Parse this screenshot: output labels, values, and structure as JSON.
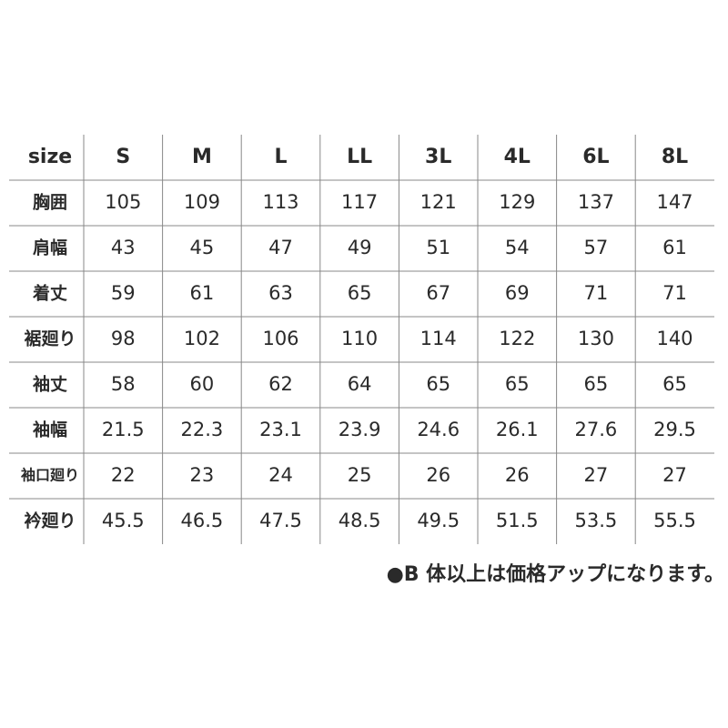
{
  "table": {
    "header": [
      "size",
      "S",
      "M",
      "L",
      "LL",
      "3L",
      "4L",
      "6L",
      "8L"
    ],
    "rows": [
      [
        "胸囲",
        "105",
        "109",
        "113",
        "117",
        "121",
        "129",
        "137",
        "147"
      ],
      [
        "肩幅",
        "43",
        "45",
        "47",
        "49",
        "51",
        "54",
        "57",
        "61"
      ],
      [
        "着丈",
        "59",
        "61",
        "63",
        "65",
        "67",
        "69",
        "71",
        "71"
      ],
      [
        "裾廻り",
        "98",
        "102",
        "106",
        "110",
        "114",
        "122",
        "130",
        "140"
      ],
      [
        "袖丈",
        "58",
        "60",
        "62",
        "64",
        "65",
        "65",
        "65",
        "65"
      ],
      [
        "袖幅",
        "21.5",
        "22.3",
        "23.1",
        "23.9",
        "24.6",
        "26.1",
        "27.6",
        "29.5"
      ],
      [
        "袖口廻り",
        "22",
        "23",
        "24",
        "25",
        "26",
        "26",
        "27",
        "27"
      ],
      [
        "衿廻り",
        "45.5",
        "46.5",
        "47.5",
        "48.5",
        "49.5",
        "51.5",
        "53.5",
        "55.5"
      ]
    ]
  },
  "note": "●B 体以上は価格アップになります。"
}
